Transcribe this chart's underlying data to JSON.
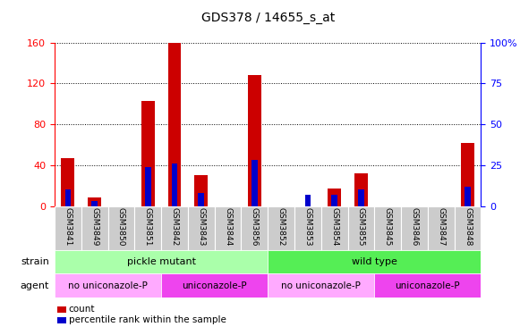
{
  "title": "GDS378 / 14655_s_at",
  "samples": [
    "GSM3841",
    "GSM3849",
    "GSM3850",
    "GSM3851",
    "GSM3842",
    "GSM3843",
    "GSM3844",
    "GSM3856",
    "GSM3852",
    "GSM3853",
    "GSM3854",
    "GSM3855",
    "GSM3845",
    "GSM3846",
    "GSM3847",
    "GSM3848"
  ],
  "count": [
    47,
    8,
    0,
    103,
    160,
    30,
    0,
    128,
    0,
    0,
    17,
    32,
    0,
    0,
    0,
    62
  ],
  "percentile": [
    10,
    3,
    0,
    24,
    26,
    8,
    0,
    28,
    0,
    7,
    7,
    10,
    0,
    0,
    0,
    12
  ],
  "ylim_left": [
    0,
    160
  ],
  "ylim_right": [
    0,
    100
  ],
  "yticks_left": [
    0,
    40,
    80,
    120,
    160
  ],
  "yticks_right": [
    0,
    25,
    50,
    75,
    100
  ],
  "ytick_labels_right": [
    "0",
    "25",
    "50",
    "75",
    "100%"
  ],
  "strain_groups": [
    {
      "label": "pickle mutant",
      "start": 0,
      "end": 8,
      "color": "#aaffaa"
    },
    {
      "label": "wild type",
      "start": 8,
      "end": 16,
      "color": "#55ee55"
    }
  ],
  "agent_groups": [
    {
      "label": "no uniconazole-P",
      "start": 0,
      "end": 4,
      "color": "#ffaaff"
    },
    {
      "label": "uniconazole-P",
      "start": 4,
      "end": 8,
      "color": "#ee44ee"
    },
    {
      "label": "no uniconazole-P",
      "start": 8,
      "end": 12,
      "color": "#ffaaff"
    },
    {
      "label": "uniconazole-P",
      "start": 12,
      "end": 16,
      "color": "#ee44ee"
    }
  ],
  "bar_color_red": "#cc0000",
  "bar_color_blue": "#0000cc",
  "bar_width": 0.5,
  "tick_label_bg": "#cccccc",
  "legend_red": "count",
  "legend_blue": "percentile rank within the sample"
}
